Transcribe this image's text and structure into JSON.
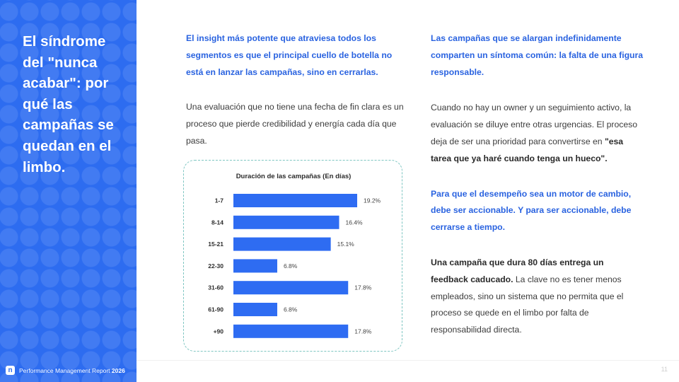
{
  "sidebar": {
    "title": "El síndrome del \"nunca acabar\": por qué las campañas se quedan en el limbo.",
    "footer_prefix": "Performance Management Report",
    "footer_year": "2026",
    "logo_letter": "n"
  },
  "middle": {
    "highlight": "El insight más potente que atraviesa todos los segmentos es que el principal cuello de botella no está en lanzar las campañas, sino en cerrarlas.",
    "body": "Una evaluación que no tiene una fecha de fin clara es un proceso que pierde credibilidad y energía cada día que pasa."
  },
  "right": {
    "highlight1": "Las campañas que se alargan indefinidamente comparten un síntoma común: la falta de una figura responsable.",
    "body1_plain": "Cuando no hay un owner y un seguimiento activo, la evaluación se diluye entre otras urgencias. El proceso deja de ser una prioridad para convertirse en ",
    "body1_bold": "\"esa tarea que ya haré cuando tenga un hueco\".",
    "highlight2": "Para que el desempeño sea un motor de cambio, debe ser accionable. Y para ser accionable, debe cerrarse a tiempo.",
    "body2_bold": "Una campaña que dura 80 días entrega un feedback caducado.",
    "body2_plain": " La clave no es tener menos empleados, sino un sistema que no permita que el proceso se quede en el limbo por falta de responsabilidad directa."
  },
  "page_number": "11",
  "colors": {
    "brand_blue": "#2d6cf0",
    "bar_blue": "#2e6cf2",
    "highlight_blue": "#2a63e0",
    "chart_border": "#7fc6c2"
  },
  "chart_data": {
    "type": "bar",
    "orientation": "horizontal",
    "title": "Duración de las campañas (En días)",
    "categories": [
      "1-7",
      "8-14",
      "15-21",
      "22-30",
      "31-60",
      "61-90",
      "+90"
    ],
    "values": [
      19.2,
      16.4,
      15.1,
      6.8,
      17.8,
      6.8,
      17.8
    ],
    "labels": [
      "19.2%",
      "16.4%",
      "15.1%",
      "6.8%",
      "17.8%",
      "6.8%",
      "17.8%"
    ],
    "unit": "%",
    "xlim": [
      0,
      19.2
    ],
    "grid": false,
    "legend": "none"
  }
}
